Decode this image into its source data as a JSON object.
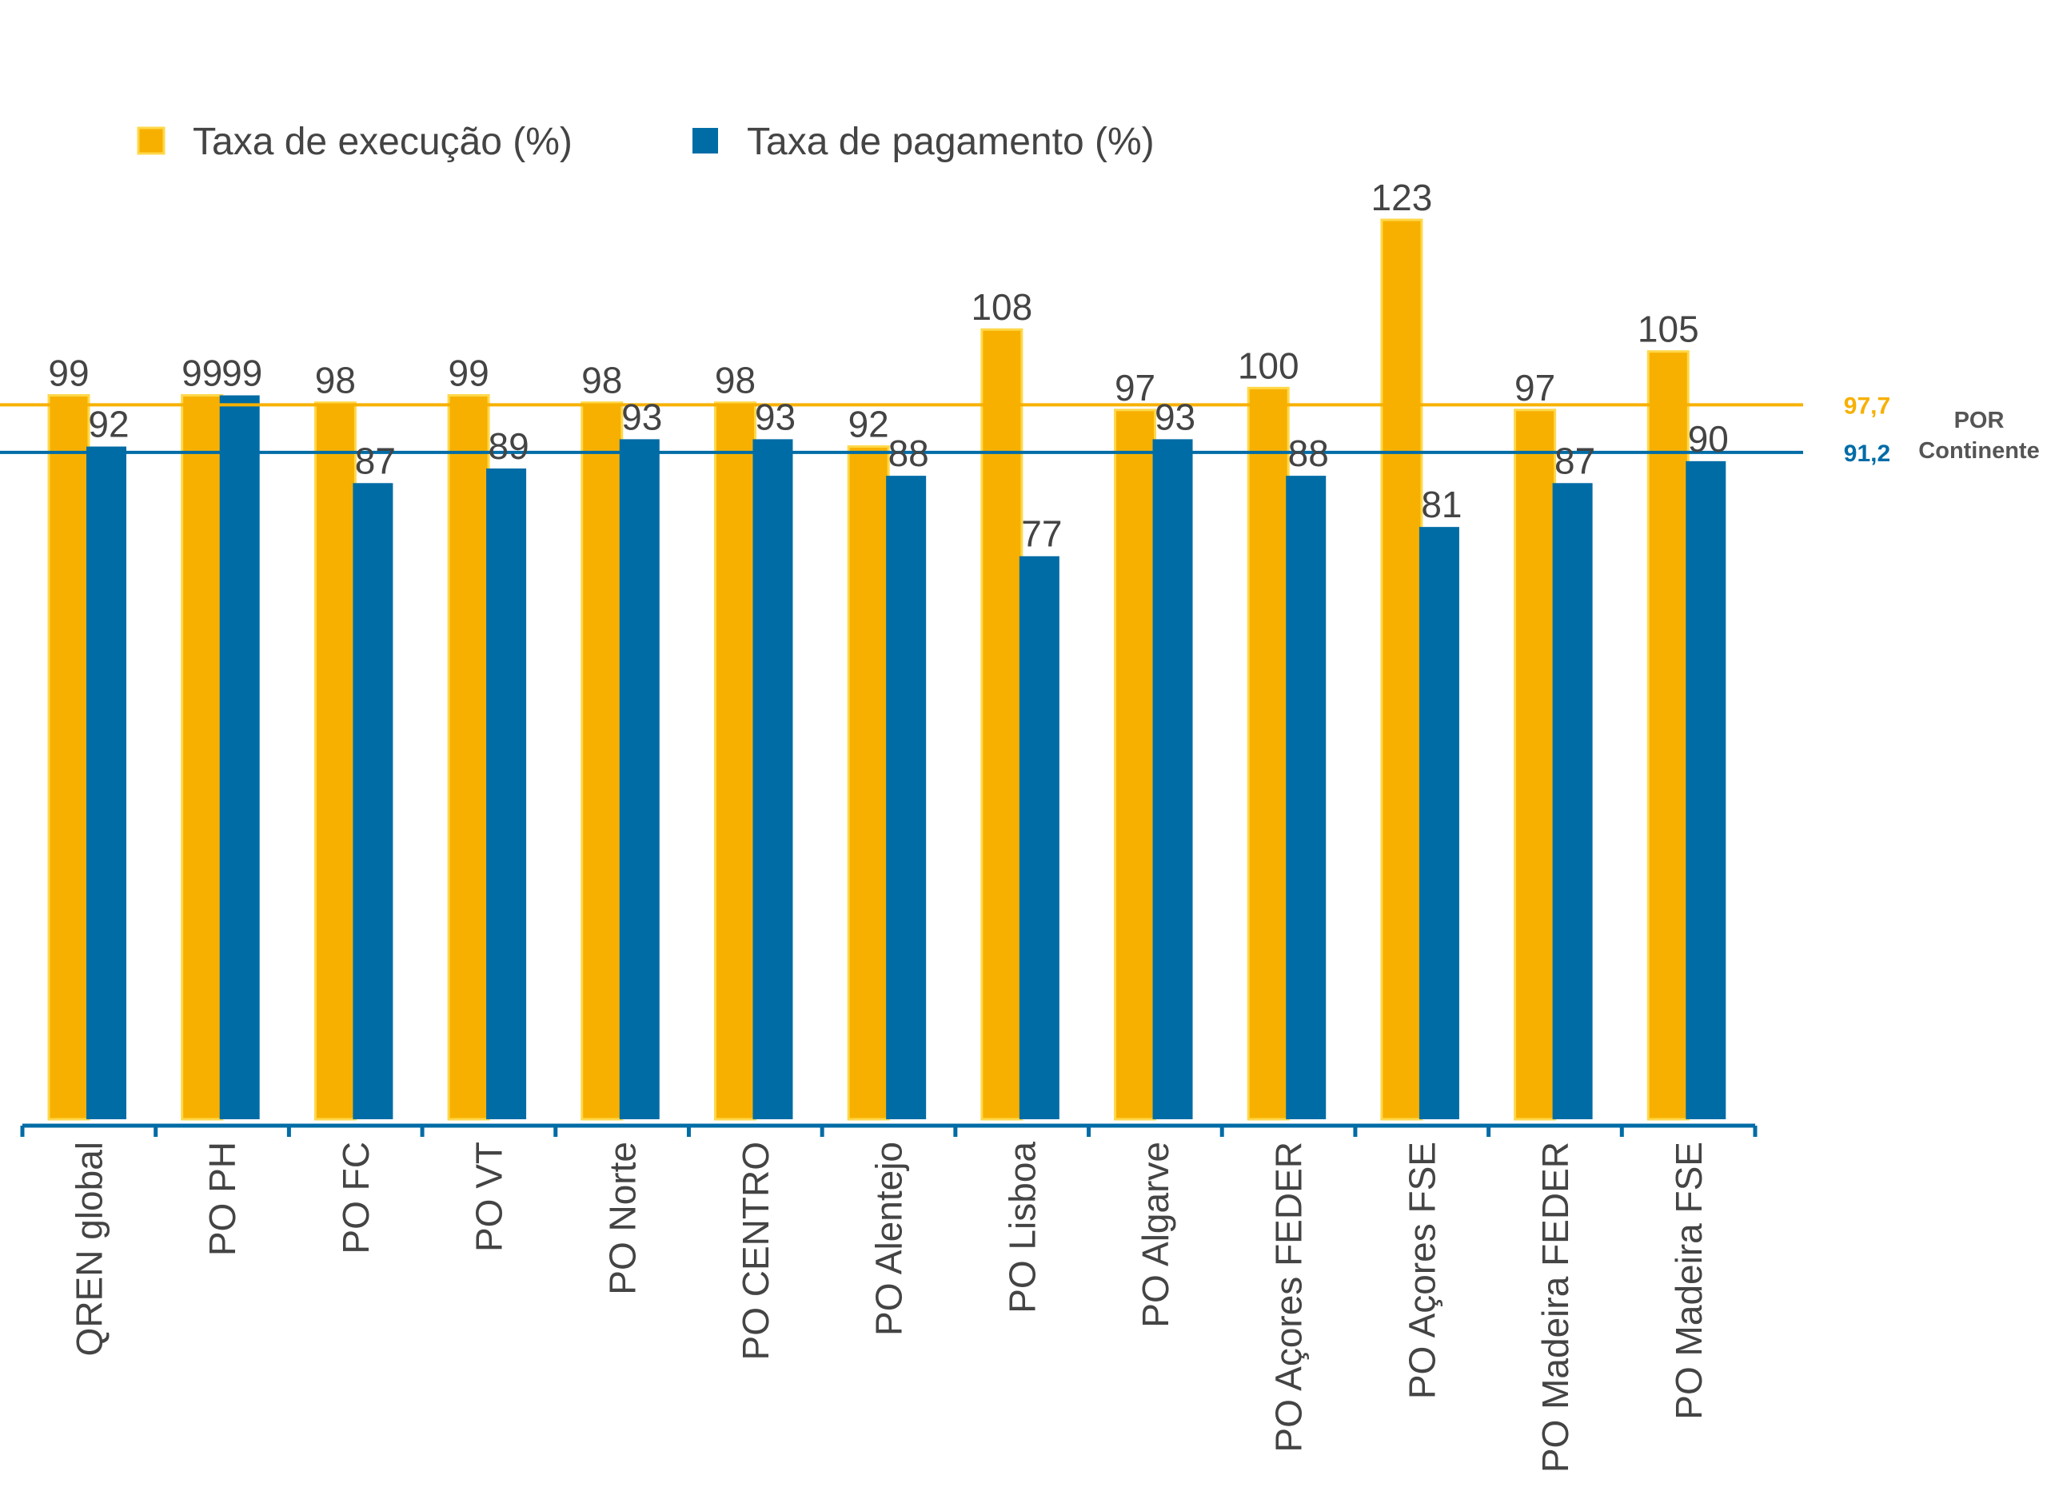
{
  "chart_data": {
    "type": "bar",
    "categories": [
      "QREN global",
      "PO PH",
      "PO FC",
      "PO VT",
      "PO Norte",
      "PO CENTRO",
      "PO Alentejo",
      "PO Lisboa",
      "PO Algarve",
      "PO Açores FEDER",
      "PO Açores FSE",
      "PO Madeira FEDER",
      "PO Madeira FSE"
    ],
    "series": [
      {
        "name": "Taxa de execução (%)",
        "color": "#F7B000",
        "values": [
          99,
          99,
          98,
          99,
          98,
          98,
          92,
          108,
          97,
          100,
          123,
          97,
          105
        ]
      },
      {
        "name": "Taxa de pagamento (%)",
        "color": "#006CA6",
        "values": [
          92,
          99,
          87,
          89,
          93,
          93,
          88,
          77,
          93,
          88,
          81,
          87,
          90
        ]
      }
    ],
    "reference_lines": [
      {
        "value": 97.7,
        "label": "97,7",
        "color": "#F7B000"
      },
      {
        "value": 91.2,
        "label": "91,2",
        "color": "#006CA6"
      }
    ],
    "reference_caption": [
      "POR",
      "Continente"
    ],
    "ylim": [
      0,
      125
    ],
    "legend_position": "top-left",
    "grid": false
  }
}
